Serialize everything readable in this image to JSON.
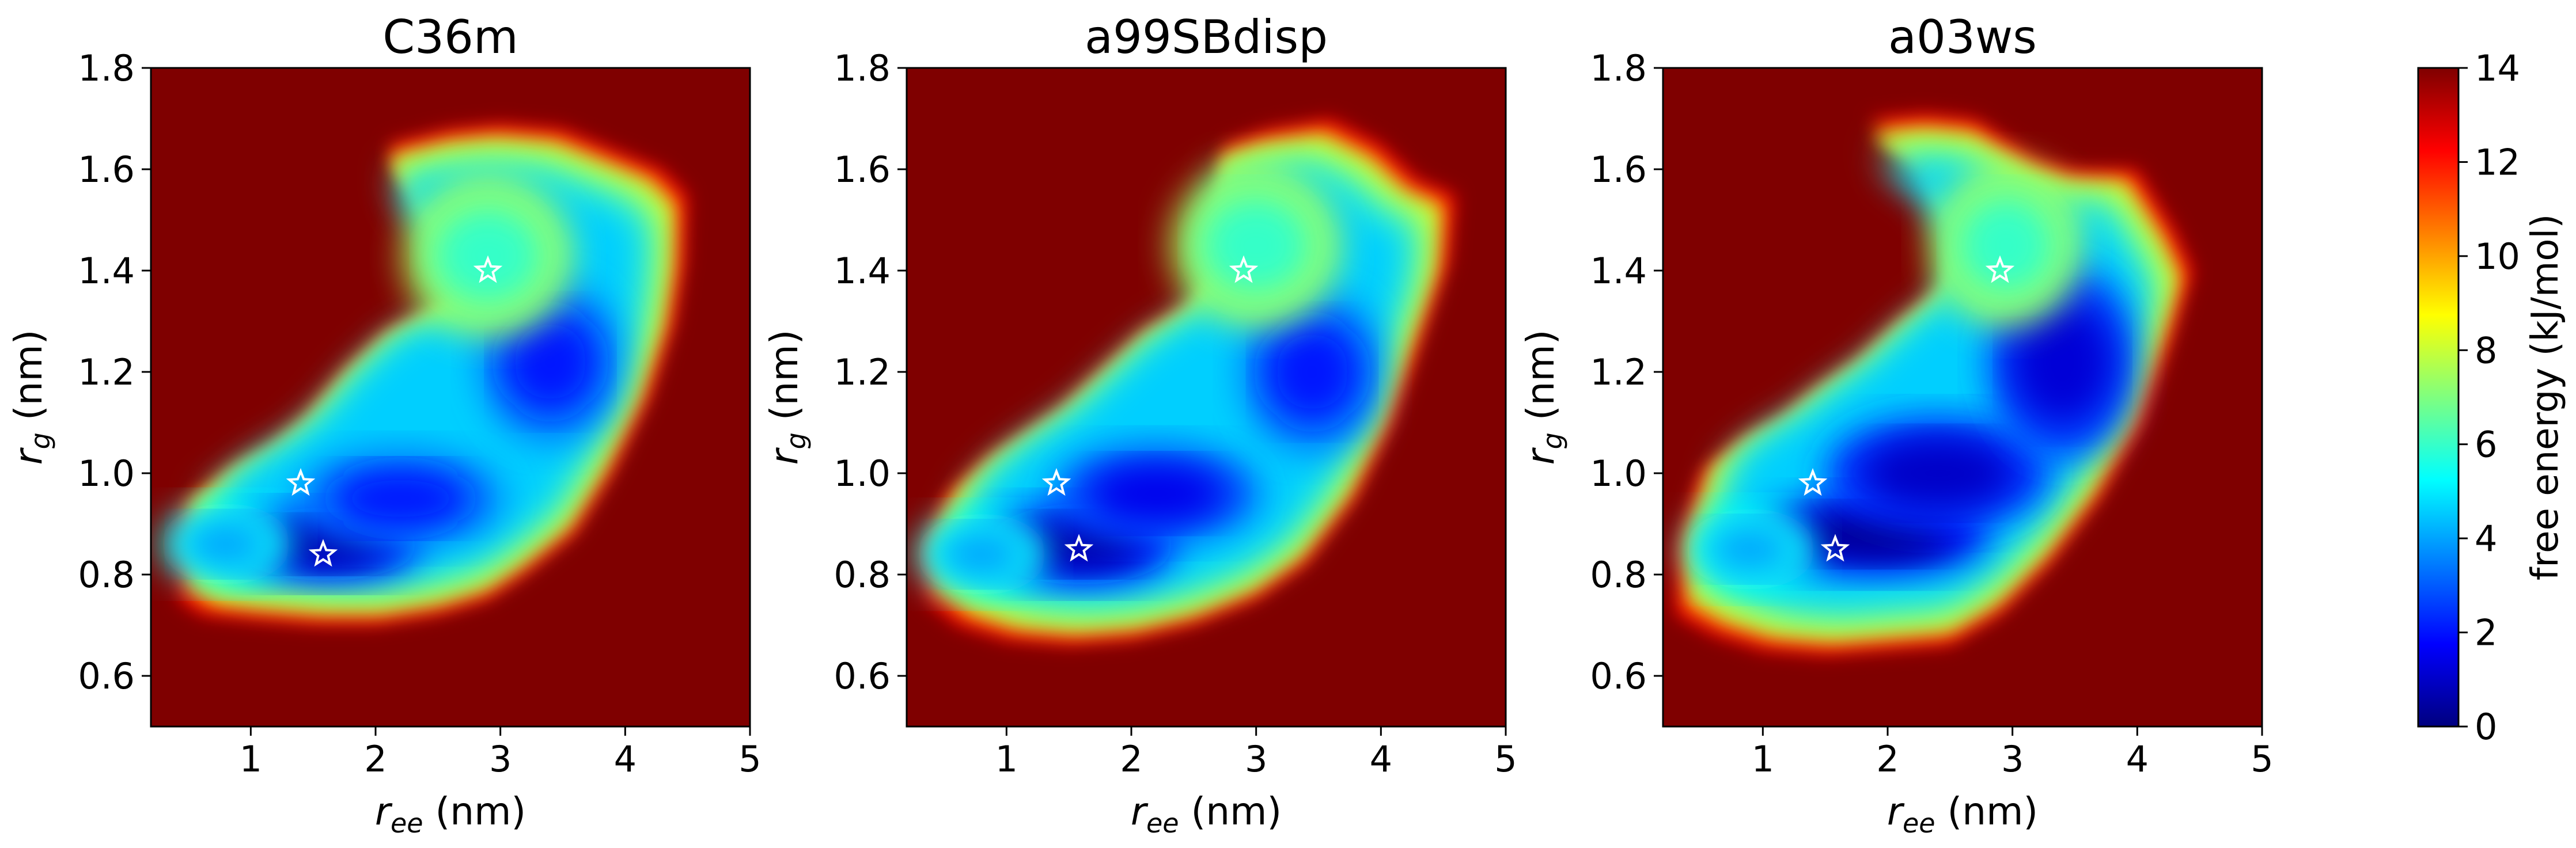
{
  "figure": {
    "colorbar": {
      "label": "free energy (kJ/mol)",
      "ticks": [
        "0",
        "2",
        "4",
        "6",
        "8",
        "10",
        "12",
        "14"
      ],
      "range": [
        0,
        14
      ],
      "colormap": "jet",
      "colors": [
        "#00007f",
        "#0000ff",
        "#007fff",
        "#00ffff",
        "#7fff7f",
        "#ffff00",
        "#ff7f00",
        "#ff0000",
        "#7f0000"
      ]
    }
  },
  "chart_data": [
    {
      "type": "heatmap",
      "title": "C36m",
      "xlabel_main": "r",
      "xlabel_sub": "ee",
      "xlabel_unit": "(nm)",
      "ylabel_main": "r",
      "ylabel_sub": "g",
      "ylabel_unit": "(nm)",
      "xlim": [
        0.2,
        5
      ],
      "ylim": [
        0.5,
        1.8
      ],
      "xticks": [
        "1",
        "2",
        "3",
        "4",
        "5"
      ],
      "yticks": [
        "0.6",
        "0.8",
        "1.0",
        "1.2",
        "1.4",
        "1.6",
        "1.8"
      ],
      "background_value": 14,
      "stars": [
        {
          "x": 2.9,
          "y": 1.4
        },
        {
          "x": 1.4,
          "y": 0.98
        },
        {
          "x": 1.58,
          "y": 0.84
        }
      ],
      "basin": {
        "outline": [
          [
            0.42,
            0.93
          ],
          [
            0.55,
            0.95
          ],
          [
            0.8,
            1.0
          ],
          [
            1.1,
            1.04
          ],
          [
            1.4,
            1.1
          ],
          [
            1.75,
            1.2
          ],
          [
            2.1,
            1.28
          ],
          [
            2.5,
            1.33
          ],
          [
            2.85,
            1.38
          ],
          [
            2.55,
            1.5
          ],
          [
            2.2,
            1.6
          ],
          [
            2.1,
            1.65
          ],
          [
            2.6,
            1.68
          ],
          [
            3.0,
            1.69
          ],
          [
            3.5,
            1.68
          ],
          [
            4.0,
            1.63
          ],
          [
            4.3,
            1.6
          ],
          [
            4.5,
            1.55
          ],
          [
            4.48,
            1.42
          ],
          [
            4.4,
            1.3
          ],
          [
            4.2,
            1.15
          ],
          [
            3.9,
            1.0
          ],
          [
            3.6,
            0.88
          ],
          [
            3.2,
            0.8
          ],
          [
            2.9,
            0.75
          ],
          [
            2.5,
            0.72
          ],
          [
            2.0,
            0.7
          ],
          [
            1.5,
            0.7
          ],
          [
            1.0,
            0.71
          ],
          [
            0.6,
            0.72
          ],
          [
            0.42,
            0.75
          ]
        ],
        "minima": [
          {
            "x": 1.6,
            "y": 0.86,
            "depth": 13.5,
            "sx": 0.5,
            "sy": 0.045
          },
          {
            "x": 2.2,
            "y": 0.95,
            "depth": 12,
            "sx": 0.55,
            "sy": 0.06
          },
          {
            "x": 3.4,
            "y": 1.22,
            "depth": 12,
            "sx": 0.38,
            "sy": 0.1
          },
          {
            "x": 2.9,
            "y": 1.43,
            "depth": 8,
            "sx": 0.45,
            "sy": 0.1
          },
          {
            "x": 0.8,
            "y": 0.86,
            "depth": 10,
            "sx": 0.35,
            "sy": 0.05
          }
        ]
      }
    },
    {
      "type": "heatmap",
      "title": "a99SBdisp",
      "xlabel_main": "r",
      "xlabel_sub": "ee",
      "xlabel_unit": "(nm)",
      "ylabel_main": "r",
      "ylabel_sub": "g",
      "ylabel_unit": "(nm)",
      "xlim": [
        0.2,
        5
      ],
      "ylim": [
        0.5,
        1.8
      ],
      "xticks": [
        "1",
        "2",
        "3",
        "4",
        "5"
      ],
      "yticks": [
        "0.6",
        "0.8",
        "1.0",
        "1.2",
        "1.4",
        "1.6",
        "1.8"
      ],
      "background_value": 14,
      "stars": [
        {
          "x": 2.9,
          "y": 1.4
        },
        {
          "x": 1.4,
          "y": 0.98
        },
        {
          "x": 1.58,
          "y": 0.85
        }
      ],
      "basin": {
        "outline": [
          [
            0.3,
            0.85
          ],
          [
            0.5,
            0.95
          ],
          [
            0.8,
            1.02
          ],
          [
            1.1,
            1.07
          ],
          [
            1.4,
            1.12
          ],
          [
            1.75,
            1.2
          ],
          [
            2.1,
            1.28
          ],
          [
            2.5,
            1.34
          ],
          [
            2.75,
            1.42
          ],
          [
            2.75,
            1.56
          ],
          [
            2.75,
            1.65
          ],
          [
            3.1,
            1.68
          ],
          [
            3.6,
            1.7
          ],
          [
            4.0,
            1.65
          ],
          [
            4.3,
            1.58
          ],
          [
            4.6,
            1.55
          ],
          [
            4.55,
            1.42
          ],
          [
            4.35,
            1.28
          ],
          [
            4.1,
            1.1
          ],
          [
            3.8,
            0.95
          ],
          [
            3.4,
            0.82
          ],
          [
            3.0,
            0.75
          ],
          [
            2.5,
            0.7
          ],
          [
            2.0,
            0.67
          ],
          [
            1.5,
            0.66
          ],
          [
            1.0,
            0.67
          ],
          [
            0.6,
            0.7
          ],
          [
            0.35,
            0.75
          ]
        ],
        "minima": [
          {
            "x": 1.6,
            "y": 0.86,
            "depth": 13.5,
            "sx": 0.5,
            "sy": 0.05
          },
          {
            "x": 2.2,
            "y": 0.96,
            "depth": 12.5,
            "sx": 0.55,
            "sy": 0.06
          },
          {
            "x": 3.45,
            "y": 1.2,
            "depth": 12,
            "sx": 0.38,
            "sy": 0.1
          },
          {
            "x": 3.0,
            "y": 1.45,
            "depth": 8,
            "sx": 0.45,
            "sy": 0.1
          },
          {
            "x": 0.8,
            "y": 0.84,
            "depth": 10,
            "sx": 0.35,
            "sy": 0.05
          }
        ]
      }
    },
    {
      "type": "heatmap",
      "title": "a03ws",
      "xlabel_main": "r",
      "xlabel_sub": "ee",
      "xlabel_unit": "(nm)",
      "ylabel_main": "r",
      "ylabel_sub": "g",
      "ylabel_unit": "(nm)",
      "xlim": [
        0.2,
        5
      ],
      "ylim": [
        0.5,
        1.8
      ],
      "xticks": [
        "1",
        "2",
        "3",
        "4",
        "5"
      ],
      "yticks": [
        "0.6",
        "0.8",
        "1.0",
        "1.2",
        "1.4",
        "1.6",
        "1.8"
      ],
      "background_value": 14,
      "stars": [
        {
          "x": 2.9,
          "y": 1.4
        },
        {
          "x": 1.4,
          "y": 0.98
        },
        {
          "x": 1.58,
          "y": 0.85
        }
      ],
      "basin": {
        "outline": [
          [
            0.3,
            0.85
          ],
          [
            0.5,
            1.0
          ],
          [
            0.8,
            1.06
          ],
          [
            1.1,
            1.1
          ],
          [
            1.4,
            1.16
          ],
          [
            1.75,
            1.22
          ],
          [
            2.1,
            1.3
          ],
          [
            2.5,
            1.38
          ],
          [
            2.6,
            1.5
          ],
          [
            2.3,
            1.62
          ],
          [
            1.85,
            1.7
          ],
          [
            2.3,
            1.71
          ],
          [
            2.7,
            1.7
          ],
          [
            3.2,
            1.62
          ],
          [
            3.5,
            1.6
          ],
          [
            4.0,
            1.6
          ],
          [
            4.3,
            1.48
          ],
          [
            4.45,
            1.4
          ],
          [
            4.3,
            1.28
          ],
          [
            4.05,
            1.1
          ],
          [
            3.7,
            0.95
          ],
          [
            3.3,
            0.82
          ],
          [
            2.9,
            0.72
          ],
          [
            2.5,
            0.66
          ],
          [
            2.0,
            0.65
          ],
          [
            1.5,
            0.64
          ],
          [
            1.0,
            0.65
          ],
          [
            0.6,
            0.68
          ],
          [
            0.3,
            0.72
          ]
        ],
        "minima": [
          {
            "x": 1.9,
            "y": 0.88,
            "depth": 13.8,
            "sx": 0.6,
            "sy": 0.05
          },
          {
            "x": 2.4,
            "y": 1.0,
            "depth": 13,
            "sx": 0.6,
            "sy": 0.07
          },
          {
            "x": 3.4,
            "y": 1.22,
            "depth": 12.8,
            "sx": 0.4,
            "sy": 0.12
          },
          {
            "x": 2.95,
            "y": 1.45,
            "depth": 8,
            "sx": 0.4,
            "sy": 0.1
          },
          {
            "x": 0.9,
            "y": 0.85,
            "depth": 10,
            "sx": 0.35,
            "sy": 0.05
          }
        ]
      }
    }
  ]
}
